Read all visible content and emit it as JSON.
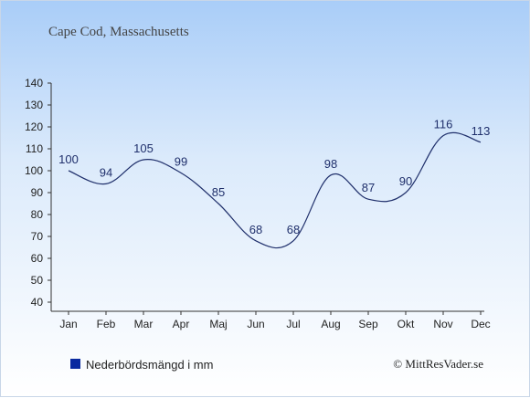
{
  "chart_data": {
    "type": "line",
    "title": "Cape Cod, Massachusetts",
    "categories": [
      "Jan",
      "Feb",
      "Mar",
      "Apr",
      "Maj",
      "Jun",
      "Jul",
      "Aug",
      "Sep",
      "Okt",
      "Nov",
      "Dec"
    ],
    "series": [
      {
        "name": "Nederbördsmängd i mm",
        "values": [
          100,
          94,
          105,
          99,
          85,
          68,
          68,
          98,
          87,
          90,
          116,
          113
        ]
      }
    ],
    "data_labels": [
      "100",
      "94",
      "105",
      "99",
      "85",
      "68",
      "68",
      "98",
      "87",
      "90",
      "116",
      "113"
    ],
    "y_ticks": [
      "40",
      "50",
      "60",
      "70",
      "80",
      "90",
      "100",
      "110",
      "120",
      "130",
      "140"
    ],
    "ylim": [
      40,
      140
    ],
    "xlabel": "",
    "ylabel": "",
    "grid": false,
    "legend_position": "bottom-left",
    "line_color": "#1f2f6b",
    "legend_marker_color": "#0a2aa0"
  },
  "legend": {
    "label": "Nederbördsmängd i mm"
  },
  "credit": {
    "text": "© MittResVader.se"
  }
}
